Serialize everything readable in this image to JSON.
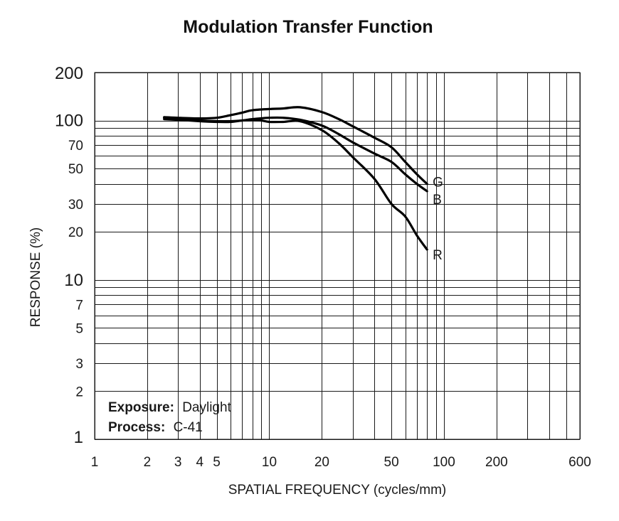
{
  "chart_data": {
    "type": "line",
    "title": "Modulation Transfer Function",
    "xlabel": "SPATIAL FREQUENCY (cycles/mm)",
    "ylabel": "RESPONSE (%)",
    "x_scale": "log",
    "y_scale": "log",
    "xlim": [
      1,
      600
    ],
    "ylim": [
      1,
      200
    ],
    "x_ticks": [
      {
        "value": 1,
        "label": "1"
      },
      {
        "value": 2,
        "label": "2"
      },
      {
        "value": 3,
        "label": "3"
      },
      {
        "value": 4,
        "label": "4"
      },
      {
        "value": 5,
        "label": "5"
      },
      {
        "value": 10,
        "label": "10"
      },
      {
        "value": 20,
        "label": "20"
      },
      {
        "value": 50,
        "label": "50"
      },
      {
        "value": 100,
        "label": "100"
      },
      {
        "value": 200,
        "label": "200"
      },
      {
        "value": 600,
        "label": "600"
      }
    ],
    "y_ticks": [
      {
        "value": 1,
        "label": "1"
      },
      {
        "value": 2,
        "label": "2"
      },
      {
        "value": 3,
        "label": "3"
      },
      {
        "value": 5,
        "label": "5"
      },
      {
        "value": 7,
        "label": "7"
      },
      {
        "value": 10,
        "label": "10"
      },
      {
        "value": 20,
        "label": "20"
      },
      {
        "value": 30,
        "label": "30"
      },
      {
        "value": 50,
        "label": "50"
      },
      {
        "value": 70,
        "label": "70"
      },
      {
        "value": 100,
        "label": "100"
      },
      {
        "value": 200,
        "label": "200"
      }
    ],
    "x_grid": [
      1,
      2,
      3,
      4,
      5,
      6,
      7,
      8,
      9,
      10,
      20,
      30,
      40,
      50,
      60,
      70,
      80,
      90,
      100,
      200,
      300,
      400,
      500,
      600
    ],
    "y_grid": [
      1,
      2,
      3,
      4,
      5,
      6,
      7,
      8,
      9,
      10,
      20,
      30,
      40,
      50,
      60,
      70,
      80,
      90,
      100,
      200
    ],
    "grid": true,
    "series": [
      {
        "name": "G",
        "x": [
          2.5,
          3,
          4,
          5,
          6,
          7,
          8,
          10,
          12,
          15,
          20,
          25,
          30,
          40,
          50,
          60,
          70,
          80
        ],
        "y": [
          105,
          104,
          103,
          104,
          108,
          112,
          116,
          118,
          119,
          121,
          113,
          102,
          92,
          78,
          68,
          55,
          46,
          40
        ]
      },
      {
        "name": "B",
        "x": [
          2.5,
          3,
          4,
          5,
          6,
          7,
          8,
          10,
          12,
          15,
          20,
          25,
          30,
          40,
          50,
          60,
          70,
          80
        ],
        "y": [
          104,
          102,
          100,
          99,
          99,
          100,
          102,
          104,
          104,
          101,
          93,
          82,
          73,
          62,
          55,
          46,
          40,
          36
        ]
      },
      {
        "name": "R",
        "x": [
          2.5,
          3,
          4,
          5,
          6,
          7,
          8,
          9,
          10,
          12,
          15,
          20,
          25,
          30,
          40,
          50,
          60,
          70,
          80
        ],
        "y": [
          102,
          101,
          99,
          98,
          98,
          100,
          101,
          100,
          98,
          98,
          99,
          87,
          72,
          59,
          43,
          30,
          25,
          19,
          15.5
        ]
      }
    ],
    "annotations": [
      {
        "label": "Exposure:",
        "value": "Daylight"
      },
      {
        "label": "Process:",
        "value": "C-41"
      }
    ]
  }
}
